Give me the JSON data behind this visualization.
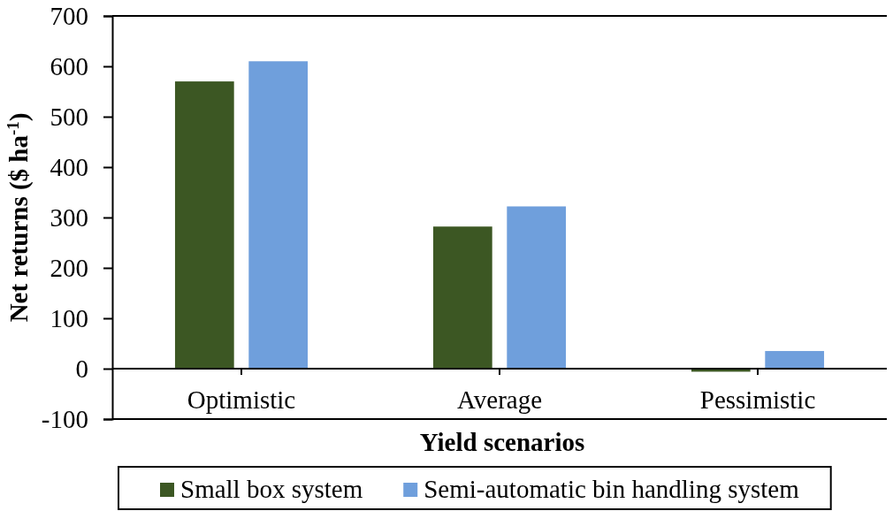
{
  "chart_data": {
    "type": "bar",
    "categories": [
      "Optimistic",
      "Average",
      "Pessimistic"
    ],
    "series": [
      {
        "name": "Small box system",
        "color": "#3c5723",
        "values": [
          570,
          282,
          -6
        ]
      },
      {
        "name": "Semi-automatic bin handling system",
        "color": "#6f9fdc",
        "values": [
          610,
          322,
          35
        ]
      }
    ],
    "xlabel": "Yield scenarios",
    "ylabel": "Net returns ($ ha$^{-1}$)",
    "ylim": [
      -100,
      700
    ],
    "yticks": [
      -100,
      0,
      100,
      200,
      300,
      400,
      500,
      600,
      700
    ],
    "legend": "bottom"
  }
}
